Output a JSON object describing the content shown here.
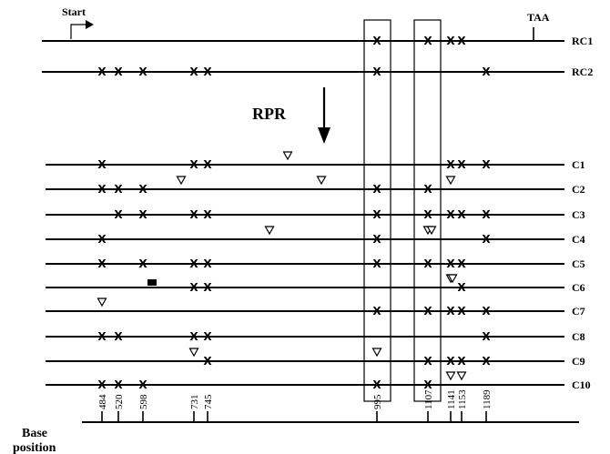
{
  "labels": {
    "start": "Start",
    "stop_codon": "TAA",
    "treatment": "RPR",
    "axis_title_1": "Base",
    "axis_title_2": "position"
  },
  "symbols": {
    "mutation": "X",
    "triangle": "▽"
  },
  "axis_ticks": [
    "484",
    "520",
    "598",
    "731",
    "745",
    "995",
    "1107",
    "1141",
    "1153",
    "1189"
  ],
  "top_rows": [
    {
      "name": "RC1",
      "x_marks": [
        "995",
        "1107",
        "1141",
        "1153"
      ]
    },
    {
      "name": "RC2",
      "x_marks": [
        "484",
        "520",
        "598",
        "731",
        "745",
        "995",
        "1189"
      ]
    }
  ],
  "clone_rows": [
    {
      "name": "C1",
      "x_marks": [
        "484",
        "731",
        "745",
        "1141",
        "1153",
        "1189"
      ],
      "triangles": [
        "RPR-region-a"
      ]
    },
    {
      "name": "C2",
      "x_marks": [
        "484",
        "520",
        "598",
        "995",
        "1107"
      ],
      "triangles": [
        "pre-731",
        "RPR-region-b",
        "1141"
      ]
    },
    {
      "name": "C3",
      "x_marks": [
        "520",
        "598",
        "731",
        "745",
        "995",
        "1107",
        "1141",
        "1153",
        "1189"
      ],
      "triangles": []
    },
    {
      "name": "C4",
      "x_marks": [
        "484",
        "995",
        "1189"
      ],
      "triangles": [
        "RPR-region-c",
        "1107",
        "1107b"
      ]
    },
    {
      "name": "C5",
      "x_marks": [
        "484",
        "598",
        "731",
        "745",
        "995",
        "1107",
        "1141",
        "1153"
      ],
      "triangles": []
    },
    {
      "name": "C6",
      "x_marks": [
        "731",
        "745",
        "1153"
      ],
      "triangles": [
        "1141",
        "1141b"
      ],
      "block": "598"
    },
    {
      "name": "C7",
      "x_marks": [
        "995",
        "1107",
        "1141",
        "1153",
        "1189"
      ],
      "triangles": [
        "484"
      ]
    },
    {
      "name": "C8",
      "x_marks": [
        "484",
        "520",
        "731",
        "745",
        "1189"
      ],
      "triangles": []
    },
    {
      "name": "C9",
      "x_marks": [
        "745",
        "1107",
        "1141",
        "1153",
        "1189"
      ],
      "triangles": [
        "731",
        "995"
      ]
    },
    {
      "name": "C10",
      "x_marks": [
        "484",
        "520",
        "598",
        "995",
        "1107"
      ],
      "triangles": [
        "1141",
        "1153"
      ]
    }
  ]
}
